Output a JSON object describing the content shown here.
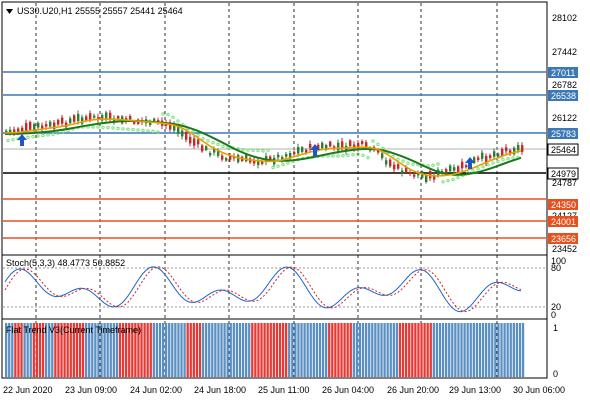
{
  "symbol_header": {
    "text": "US30.U20,H1  25555 25557 25441 25464",
    "menu_icon": "triangle-down-icon"
  },
  "stoch_header": {
    "text": "Stoch(5,3,3) 48.4773 50.8852"
  },
  "trend_header": {
    "text": "Flat Trend V3(Current Timeframe)"
  },
  "colors": {
    "candle_bull": "#2e7d32",
    "candle_bear": "#c62828",
    "ma_fast": "#e6a000",
    "ma_slow": "#1b7a1b",
    "sar": "#6ddf6d",
    "resistance": "#3b78b5",
    "support": "#e8501e",
    "bar_red": "#e53935",
    "bar_blue": "#5a8fc2"
  },
  "price_axis": {
    "ticks": [
      "28102",
      "27442",
      "26782",
      "26122",
      "25462",
      "24787",
      "24127",
      "23452"
    ]
  },
  "price_level_labels": {
    "r1": "27011",
    "r2": "26538",
    "r3": "25783",
    "current": "25464",
    "s0": "24979",
    "s1": "24350",
    "s2": "24001",
    "s3": "23656"
  },
  "stoch_axis": {
    "ticks": [
      "100",
      "80",
      "20",
      "0"
    ]
  },
  "trend_axis": {
    "ticks": [
      "1",
      "0"
    ]
  },
  "time_axis": {
    "labels": [
      "22 Jun 2020",
      "23 Jun 09:00",
      "24 Jun 02:00",
      "24 Jun 18:00",
      "25 Jun 11:00",
      "26 Jun 04:00",
      "26 Jun 20:00",
      "29 Jun 13:00",
      "30 Jun 06:00"
    ]
  },
  "trend_bars": "BBBRRRBBBRRRRBBBRRRRRRRRRRBBBBBBBBBBBRRRRRRRRRRRBBBBBBBBBBBRRRRRBBBBBBBBBBBBBBBBRRRRRRRRRRRRBBBBBBBBBBBBBRRRRRRRRBBBBBBBBBBBBBBBRRRRRRRRRRRBBBBBBBBBBBBBBBBBBBBBBBBBBBBBB"
}
